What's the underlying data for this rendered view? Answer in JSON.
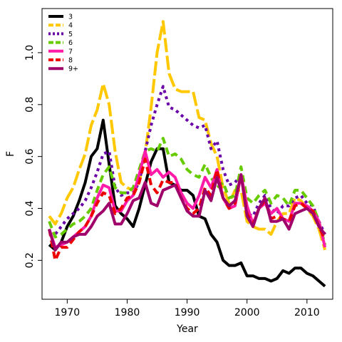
{
  "chart_data": {
    "type": "line",
    "title": "",
    "xlabel": "Year",
    "ylabel": "F",
    "xlim": [
      1965.8,
      2014.3
    ],
    "ylim": [
      0.05,
      1.17
    ],
    "xticks": [
      1970,
      1980,
      1990,
      2000,
      2010
    ],
    "yticks": [
      0.2,
      0.4,
      0.6,
      0.8,
      1.0
    ],
    "xtick_labels": [
      "1970",
      "1980",
      "1990",
      "2000",
      "2010"
    ],
    "ytick_labels": [
      "0.2",
      "0.4",
      "0.6",
      "0.8",
      "1.0"
    ],
    "grid": false,
    "legend_position": "top-left",
    "x": [
      1967,
      1968,
      1969,
      1970,
      1971,
      1972,
      1973,
      1974,
      1975,
      1976,
      1977,
      1978,
      1979,
      1980,
      1981,
      1982,
      1983,
      1984,
      1985,
      1986,
      1987,
      1988,
      1989,
      1990,
      1991,
      1992,
      1993,
      1994,
      1995,
      1996,
      1997,
      1998,
      1999,
      2000,
      2001,
      2002,
      2003,
      2004,
      2005,
      2006,
      2007,
      2008,
      2009,
      2010,
      2011,
      2012,
      2013
    ],
    "series": [
      {
        "name": "3",
        "color": "#000000",
        "dash": "solid",
        "values": [
          0.26,
          0.24,
          0.27,
          0.33,
          0.37,
          0.43,
          0.5,
          0.6,
          0.63,
          0.74,
          0.57,
          0.41,
          0.38,
          0.36,
          0.33,
          0.4,
          0.49,
          0.58,
          0.63,
          0.63,
          0.5,
          0.49,
          0.47,
          0.47,
          0.45,
          0.37,
          0.36,
          0.3,
          0.27,
          0.2,
          0.18,
          0.18,
          0.19,
          0.14,
          0.14,
          0.13,
          0.13,
          0.12,
          0.13,
          0.16,
          0.15,
          0.17,
          0.17,
          0.15,
          0.14,
          0.12,
          0.1
        ]
      },
      {
        "name": "4",
        "color": "#FFC800",
        "dash": "long",
        "values": [
          0.37,
          0.34,
          0.38,
          0.44,
          0.48,
          0.55,
          0.61,
          0.72,
          0.78,
          0.88,
          0.8,
          0.62,
          0.5,
          0.48,
          0.47,
          0.5,
          0.61,
          0.79,
          1.0,
          1.12,
          0.92,
          0.86,
          0.85,
          0.85,
          0.85,
          0.75,
          0.74,
          0.65,
          0.6,
          0.48,
          0.42,
          0.47,
          0.47,
          0.35,
          0.33,
          0.32,
          0.32,
          0.3,
          0.35,
          0.38,
          0.38,
          0.44,
          0.43,
          0.4,
          0.37,
          0.32,
          0.24
        ]
      },
      {
        "name": "5",
        "color": "#6A00A8",
        "dash": "dotted",
        "values": [
          0.3,
          0.3,
          0.33,
          0.36,
          0.38,
          0.4,
          0.43,
          0.48,
          0.54,
          0.61,
          0.62,
          0.48,
          0.45,
          0.46,
          0.46,
          0.5,
          0.62,
          0.72,
          0.8,
          0.87,
          0.79,
          0.78,
          0.76,
          0.74,
          0.72,
          0.71,
          0.72,
          0.63,
          0.66,
          0.55,
          0.49,
          0.5,
          0.53,
          0.38,
          0.37,
          0.42,
          0.45,
          0.4,
          0.38,
          0.41,
          0.41,
          0.44,
          0.45,
          0.42,
          0.41,
          0.35,
          0.3
        ]
      },
      {
        "name": "6",
        "color": "#66CC00",
        "dash": "dashed",
        "values": [
          0.35,
          0.29,
          0.3,
          0.32,
          0.34,
          0.35,
          0.37,
          0.4,
          0.47,
          0.53,
          0.56,
          0.48,
          0.46,
          0.46,
          0.48,
          0.55,
          0.62,
          0.63,
          0.62,
          0.67,
          0.6,
          0.61,
          0.59,
          0.55,
          0.53,
          0.52,
          0.57,
          0.52,
          0.48,
          0.5,
          0.44,
          0.45,
          0.56,
          0.44,
          0.42,
          0.45,
          0.47,
          0.42,
          0.45,
          0.44,
          0.41,
          0.47,
          0.47,
          0.44,
          0.41,
          0.35,
          0.26
        ]
      },
      {
        "name": "7",
        "color": "#FF1AA8",
        "dash": "solid",
        "values": [
          0.32,
          0.25,
          0.26,
          0.27,
          0.29,
          0.31,
          0.33,
          0.37,
          0.44,
          0.49,
          0.48,
          0.39,
          0.39,
          0.43,
          0.45,
          0.53,
          0.62,
          0.53,
          0.55,
          0.52,
          0.54,
          0.52,
          0.46,
          0.42,
          0.4,
          0.45,
          0.52,
          0.48,
          0.55,
          0.44,
          0.4,
          0.41,
          0.53,
          0.41,
          0.34,
          0.4,
          0.42,
          0.38,
          0.4,
          0.36,
          0.35,
          0.42,
          0.42,
          0.41,
          0.39,
          0.35,
          0.25
        ]
      },
      {
        "name": "8",
        "color": "#EE0000",
        "dash": "dashed",
        "values": [
          0.32,
          0.2,
          0.25,
          0.25,
          0.28,
          0.31,
          0.33,
          0.37,
          0.42,
          0.46,
          0.45,
          0.38,
          0.4,
          0.44,
          0.45,
          0.5,
          0.59,
          0.49,
          0.46,
          0.51,
          0.5,
          0.5,
          0.44,
          0.4,
          0.38,
          0.4,
          0.48,
          0.45,
          0.55,
          0.44,
          0.4,
          0.42,
          0.53,
          0.38,
          0.34,
          0.4,
          0.43,
          0.36,
          0.37,
          0.36,
          0.35,
          0.41,
          0.42,
          0.4,
          0.39,
          0.33,
          0.28
        ]
      },
      {
        "name": "9+",
        "color": "#A0006A",
        "dash": "solid",
        "values": [
          0.32,
          0.24,
          0.27,
          0.27,
          0.29,
          0.3,
          0.3,
          0.33,
          0.37,
          0.39,
          0.42,
          0.34,
          0.34,
          0.38,
          0.43,
          0.44,
          0.5,
          0.42,
          0.41,
          0.47,
          0.48,
          0.49,
          0.44,
          0.39,
          0.37,
          0.37,
          0.47,
          0.43,
          0.52,
          0.44,
          0.41,
          0.43,
          0.53,
          0.37,
          0.33,
          0.4,
          0.44,
          0.35,
          0.35,
          0.36,
          0.32,
          0.38,
          0.39,
          0.4,
          0.38,
          0.33,
          0.3
        ]
      }
    ]
  }
}
